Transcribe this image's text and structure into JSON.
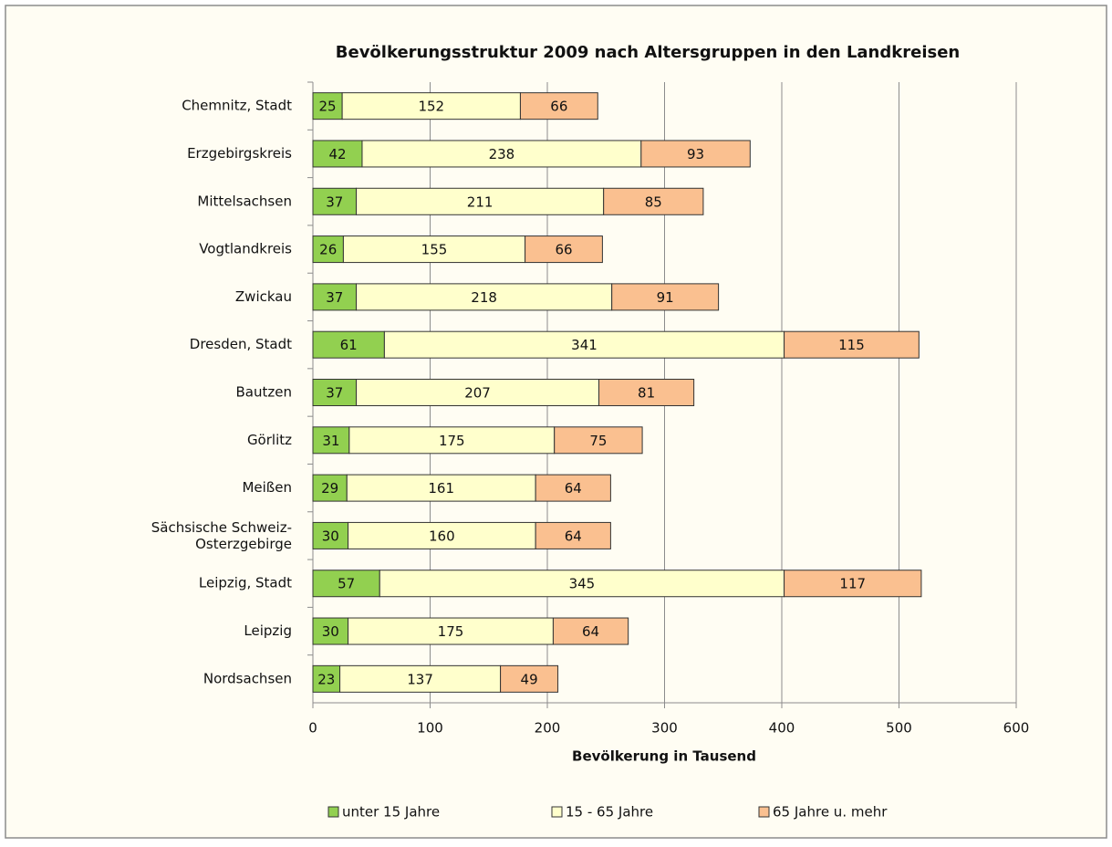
{
  "chart_data": {
    "type": "bar",
    "orientation": "horizontal",
    "stacked": true,
    "title": "Bevölkerungsstruktur 2009 nach Altersgruppen in den Landkreisen",
    "xlabel": "Bevölkerung in Tausend",
    "categories": [
      "Chemnitz, Stadt",
      "Erzgebirgskreis",
      "Mittelsachsen",
      "Vogtlandkreis",
      "Zwickau",
      "Dresden, Stadt",
      "Bautzen",
      "Görlitz",
      "Meißen",
      "Sächsische Schweiz-\nOsterzgebirge",
      "Leipzig, Stadt",
      "Leipzig",
      "Nordsachsen"
    ],
    "series": [
      {
        "name": "unter 15 Jahre",
        "color": "#92d050",
        "values": [
          25,
          42,
          37,
          26,
          37,
          61,
          37,
          31,
          29,
          30,
          57,
          30,
          23
        ]
      },
      {
        "name": "15 - 65 Jahre",
        "color": "#ffffcc",
        "values": [
          152,
          238,
          211,
          155,
          218,
          341,
          207,
          175,
          161,
          160,
          345,
          175,
          137
        ]
      },
      {
        "name": "65 Jahre u. mehr",
        "color": "#fac090",
        "values": [
          66,
          93,
          85,
          66,
          91,
          115,
          81,
          75,
          64,
          64,
          117,
          64,
          49
        ]
      }
    ],
    "xlim": [
      0,
      600
    ],
    "xticks": [
      0,
      100,
      200,
      300,
      400,
      500,
      600
    ],
    "grid": true,
    "legend": "bottom"
  }
}
